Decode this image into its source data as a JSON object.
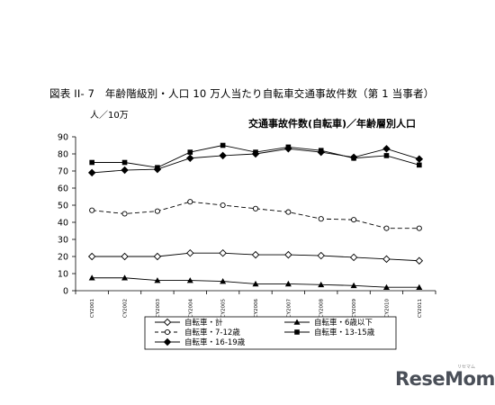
{
  "figure_title": "図表 II- 7　年齢階級別・人口 10 万人当たり自転車交通事故件数（第 1 当事者）",
  "watermark": {
    "brand": "ReseMom",
    "kana": "リセマム"
  },
  "chart_data": {
    "type": "line",
    "title": "交通事故件数(自転車)／年齢層別人口",
    "ylabel": "人／10万",
    "xlabel": "",
    "ylim": [
      0,
      90
    ],
    "yticks": [
      0,
      10,
      20,
      30,
      40,
      50,
      60,
      70,
      80,
      90
    ],
    "grid": false,
    "legend_position": "bottom",
    "categories": [
      "CY2001",
      "CY2002",
      "CY2003",
      "CY2004",
      "CY2005",
      "CY2006",
      "CY2007",
      "CY2008",
      "CY2009",
      "CY2010",
      "CY2011"
    ],
    "series": [
      {
        "name": "自転車・計",
        "marker": "diamond-open",
        "line": "solid",
        "values": [
          20,
          20,
          20,
          22,
          22,
          21,
          21,
          20.5,
          19.5,
          18.5,
          17.5
        ]
      },
      {
        "name": "自転車・6歳以下",
        "marker": "triangle",
        "line": "solid",
        "values": [
          7.5,
          7.5,
          6,
          6,
          5.5,
          4,
          4,
          3.5,
          3,
          2,
          2
        ]
      },
      {
        "name": "自転車・7-12歳",
        "marker": "circle-open",
        "line": "dashed",
        "values": [
          47,
          45,
          46.5,
          52,
          50,
          48,
          46,
          42,
          41.5,
          36.5,
          36.5
        ]
      },
      {
        "name": "自転車・13-15歳",
        "marker": "square",
        "line": "solid",
        "values": [
          75,
          75,
          72,
          81,
          85,
          81,
          84,
          82,
          77.5,
          79,
          73.5
        ]
      },
      {
        "name": "自転車・16-19歳",
        "marker": "diamond",
        "line": "solid",
        "values": [
          69,
          70.5,
          71,
          77.5,
          79,
          80,
          83,
          81,
          78,
          83,
          77
        ]
      }
    ]
  }
}
